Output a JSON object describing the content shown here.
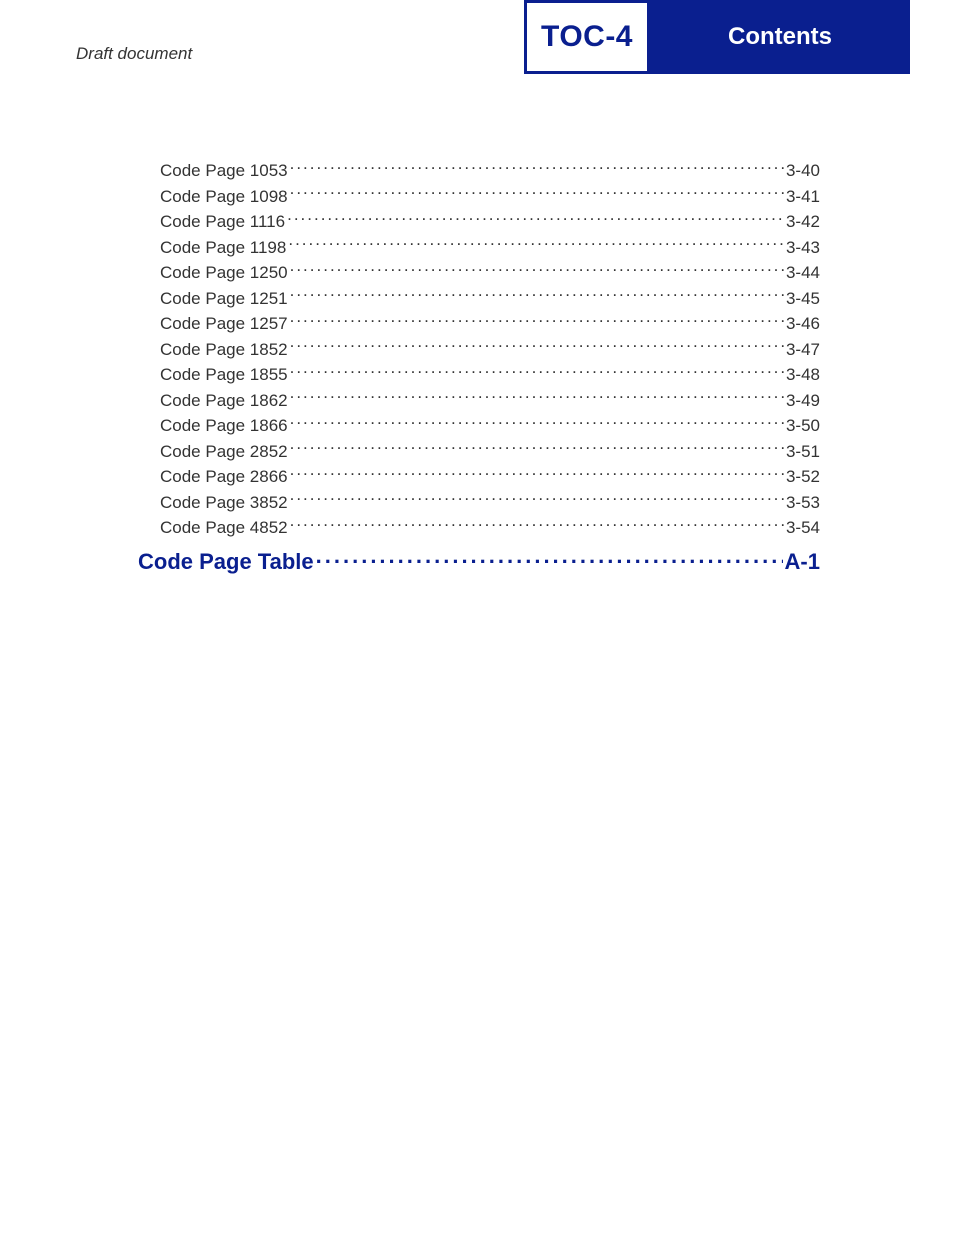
{
  "header": {
    "draft": "Draft document",
    "toc_badge": "TOC-4",
    "contents": "Contents"
  },
  "colors": {
    "accent": "#0a1f8f",
    "text": "#333333",
    "bg": "#ffffff"
  },
  "typography": {
    "body_fontsize": 17,
    "section_fontsize": 22,
    "toc_badge_fontsize": 30,
    "contents_fontsize": 24,
    "font_family": "Arial"
  },
  "toc": {
    "entries": [
      {
        "label": "Code Page 1053",
        "page": "3-40"
      },
      {
        "label": "Code Page 1098",
        "page": "3-41"
      },
      {
        "label": "Code Page 1116",
        "page": "3-42"
      },
      {
        "label": "Code Page 1198",
        "page": "3-43"
      },
      {
        "label": "Code Page 1250",
        "page": "3-44"
      },
      {
        "label": "Code Page 1251",
        "page": "3-45"
      },
      {
        "label": "Code Page 1257",
        "page": "3-46"
      },
      {
        "label": "Code Page 1852",
        "page": "3-47"
      },
      {
        "label": "Code Page 1855",
        "page": "3-48"
      },
      {
        "label": "Code Page 1862",
        "page": "3-49"
      },
      {
        "label": "Code Page 1866",
        "page": "3-50"
      },
      {
        "label": "Code Page 2852",
        "page": "3-51"
      },
      {
        "label": "Code Page 2866",
        "page": "3-52"
      },
      {
        "label": "Code Page 3852",
        "page": "3-53"
      },
      {
        "label": "Code Page 4852",
        "page": "3-54"
      }
    ],
    "section": {
      "label": "Code Page Table",
      "page": "A-1"
    }
  }
}
